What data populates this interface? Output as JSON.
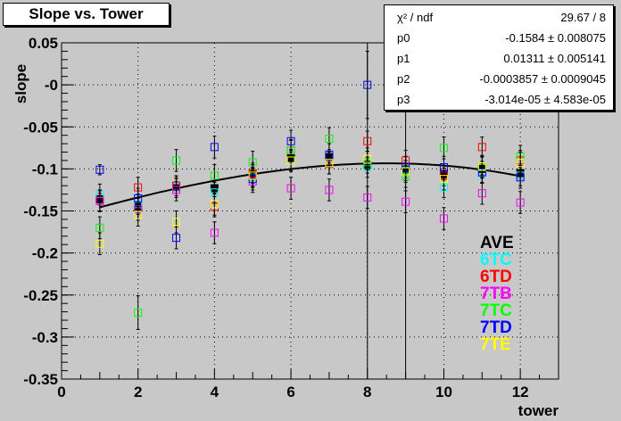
{
  "title": "Slope vs. Tower",
  "stats": [
    {
      "name": "χ² / ndf",
      "value": "29.67 / 8"
    },
    {
      "name": "p0",
      "value": "-0.1584 ± 0.008075"
    },
    {
      "name": "p1",
      "value": "0.01311 ± 0.005141"
    },
    {
      "name": "p2",
      "value": "-0.0003857 ± 0.0009045"
    },
    {
      "name": "p3",
      "value": "-3.014e-05 ± 4.583e-05"
    }
  ],
  "legend": [
    {
      "label": "AVE",
      "color": "#000000"
    },
    {
      "label": "6TC",
      "color": "#00ffff"
    },
    {
      "label": "6TD",
      "color": "#ff0000"
    },
    {
      "label": "7TB",
      "color": "#ff00ff"
    },
    {
      "label": "7TC",
      "color": "#00ff00"
    },
    {
      "label": "7TD",
      "color": "#0000ff"
    },
    {
      "label": "7TE",
      "color": "#ffff00"
    }
  ],
  "chart_data": {
    "type": "scatter",
    "title": "Slope vs. Tower",
    "xlabel": "tower",
    "ylabel": "slope",
    "xlim": [
      0,
      13
    ],
    "ylim": [
      -0.35,
      0.05
    ],
    "xticks": [
      "0",
      "2",
      "4",
      "6",
      "8",
      "10",
      "12"
    ],
    "yticks": [
      "0.05",
      "-0",
      "-0.05",
      "-0.1",
      "-0.15",
      "-0.2",
      "-0.25",
      "-0.3",
      "-0.35"
    ],
    "grid": true,
    "fit": {
      "p0": -0.1584,
      "p1": 0.01311,
      "p2": -0.0003857,
      "p3": -3.014e-05,
      "range": [
        1,
        12
      ]
    },
    "vlines": [
      8,
      9
    ],
    "series": [
      {
        "name": "AVE",
        "color": "#000000",
        "filled": true,
        "x": [
          1,
          2,
          3,
          4,
          5,
          6,
          7,
          8,
          9,
          10,
          11,
          12
        ],
        "y": [
          -0.136,
          -0.145,
          -0.122,
          -0.123,
          -0.107,
          -0.087,
          -0.086,
          -0.095,
          -0.101,
          -0.106,
          -0.1,
          -0.105
        ],
        "err": [
          0.007,
          0.007,
          0.007,
          0.007,
          0.007,
          0.007,
          0.007,
          0.007,
          0.007,
          0.007,
          0.007,
          0.007
        ]
      },
      {
        "name": "6TC",
        "color": "#00ffff",
        "filled": false,
        "x": [
          1,
          2,
          3,
          4,
          5,
          6,
          7,
          8,
          9,
          10,
          11,
          12
        ],
        "y": [
          -0.13,
          -0.142,
          -0.122,
          -0.128,
          -0.11,
          -0.09,
          -0.094,
          -0.098,
          -0.102,
          -0.122,
          -0.105,
          -0.108
        ],
        "err": [
          0.012,
          0.012,
          0.012,
          0.012,
          0.012,
          0.012,
          0.012,
          0.012,
          0.012,
          0.012,
          0.012,
          0.012
        ]
      },
      {
        "name": "6TD",
        "color": "#ff0000",
        "filled": false,
        "x": [
          1,
          2,
          3,
          4,
          5,
          6,
          7,
          8,
          9,
          10,
          11,
          12
        ],
        "y": [
          -0.138,
          -0.122,
          -0.12,
          -0.145,
          -0.105,
          -0.078,
          -0.094,
          -0.067,
          -0.09,
          -0.108,
          -0.074,
          -0.09
        ],
        "err": [
          0.012,
          0.012,
          0.012,
          0.012,
          0.012,
          0.012,
          0.012,
          0.012,
          0.012,
          0.012,
          0.012,
          0.012
        ]
      },
      {
        "name": "7TB",
        "color": "#ff00ff",
        "filled": false,
        "x": [
          1,
          2,
          3,
          4,
          5,
          6,
          7,
          8,
          9,
          10,
          11,
          12
        ],
        "y": [
          -0.138,
          -0.148,
          -0.125,
          -0.176,
          -0.115,
          -0.123,
          -0.125,
          -0.134,
          -0.139,
          -0.159,
          -0.129,
          -0.14
        ],
        "err": [
          0.013,
          0.013,
          0.013,
          0.013,
          0.013,
          0.013,
          0.013,
          0.013,
          0.013,
          0.013,
          0.013,
          0.013
        ]
      },
      {
        "name": "7TC",
        "color": "#00ff00",
        "filled": false,
        "x": [
          1,
          2,
          3,
          4,
          5,
          6,
          7,
          8,
          9,
          10,
          11,
          12
        ],
        "y": [
          -0.17,
          -0.271,
          -0.09,
          -0.108,
          -0.092,
          -0.078,
          -0.064,
          -0.092,
          -0.109,
          -0.075,
          -0.098,
          -0.085
        ],
        "err": [
          0.013,
          0.02,
          0.013,
          0.013,
          0.013,
          0.013,
          0.013,
          0.013,
          0.013,
          0.013,
          0.013,
          0.013
        ]
      },
      {
        "name": "7TD",
        "color": "#0000ff",
        "filled": false,
        "x": [
          1,
          2,
          3,
          4,
          5,
          6,
          7,
          8,
          9,
          10,
          11,
          12
        ],
        "y": [
          -0.101,
          -0.135,
          -0.182,
          -0.074,
          -0.112,
          -0.067,
          -0.083,
          0.0,
          -0.098,
          -0.098,
          -0.104,
          -0.11
        ],
        "err": [
          0.006,
          0.012,
          0.013,
          0.013,
          0.013,
          0.013,
          0.013,
          0.04,
          0.013,
          0.013,
          0.013,
          0.013
        ]
      },
      {
        "name": "7TE",
        "color": "#ffff00",
        "filled": false,
        "x": [
          1,
          2,
          3,
          4,
          5,
          6,
          7,
          8,
          9,
          10,
          11,
          12
        ],
        "y": [
          -0.189,
          -0.155,
          -0.163,
          -0.142,
          -0.108,
          -0.09,
          -0.093,
          -0.088,
          -0.103,
          -0.112,
          -0.097,
          -0.093
        ],
        "err": [
          0.013,
          0.013,
          0.013,
          0.013,
          0.013,
          0.013,
          0.013,
          0.013,
          0.013,
          0.013,
          0.013,
          0.013
        ]
      }
    ]
  }
}
